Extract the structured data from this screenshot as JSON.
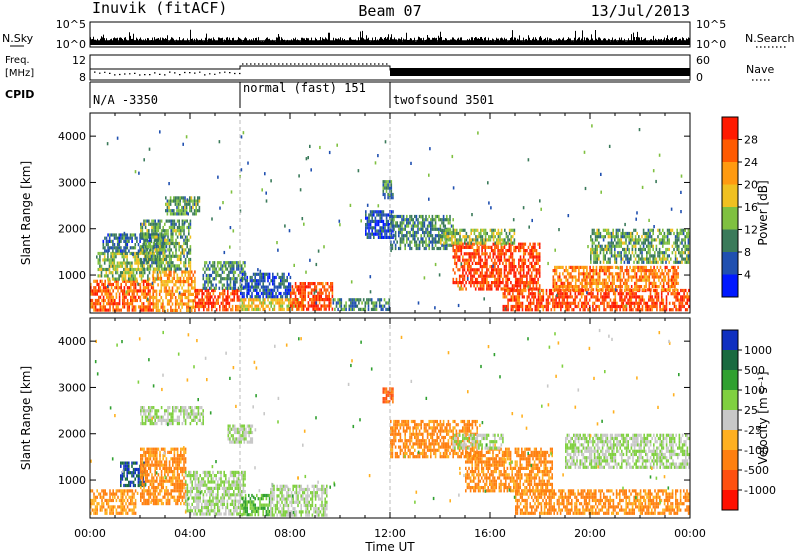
{
  "header": {
    "station": "Inuvik (fitACF)",
    "beam": "Beam 07",
    "date": "13/Jul/2013"
  },
  "summary_panels": {
    "nsky_label": "N.Sky",
    "nsearch_label": "N.Search",
    "count_ticks": [
      "10^5",
      "10^0"
    ],
    "freq_label_line1": "Freq.",
    "freq_label_line2": "[MHz]",
    "freq_ticks": [
      "12",
      "8"
    ],
    "nave_label": "Nave",
    "nave_ticks": [
      "60",
      "0"
    ],
    "cpid_label": "CPID",
    "cpid_segments": [
      {
        "label": "N/A -3350",
        "start_h": 0,
        "end_h": 6
      },
      {
        "label": "normal (fast) 151",
        "start_h": 6,
        "end_h": 12
      },
      {
        "label": "twofsound 3501",
        "start_h": 12,
        "end_h": 24
      }
    ]
  },
  "chart_data": [
    {
      "type": "heatmap",
      "title": "Power",
      "xlabel": "Time UT",
      "ylabel": "Slant Range [km]",
      "xlim": [
        0,
        24
      ],
      "ylim": [
        180,
        4500
      ],
      "x_ticks": [
        "00:00",
        "04:00",
        "08:00",
        "12:00",
        "16:00",
        "20:00",
        "00:00"
      ],
      "y_ticks": [
        1000,
        2000,
        3000,
        4000
      ],
      "colorbar": {
        "label": "Power [dB]",
        "ticks": [
          4,
          8,
          12,
          16,
          20,
          24,
          28
        ],
        "colors": [
          "#0018ff",
          "#2050b0",
          "#3a7a5a",
          "#7fc040",
          "#f0c020",
          "#ff9a10",
          "#ff5a00",
          "#ff1a00"
        ]
      },
      "regions": [
        {
          "t0": 0.0,
          "t1": 2.5,
          "r0": 250,
          "r1": 900,
          "level": 26
        },
        {
          "t0": 0.3,
          "t1": 2.8,
          "r0": 900,
          "r1": 1500,
          "level": 14
        },
        {
          "t0": 0.5,
          "t1": 3.0,
          "r0": 1500,
          "r1": 1900,
          "level": 8
        },
        {
          "t0": 2.5,
          "t1": 4.2,
          "r0": 250,
          "r1": 1100,
          "level": 22
        },
        {
          "t0": 2.0,
          "t1": 4.0,
          "r0": 1100,
          "r1": 2200,
          "level": 12
        },
        {
          "t0": 3.0,
          "t1": 4.4,
          "r0": 2300,
          "r1": 2700,
          "level": 12
        },
        {
          "t0": 4.2,
          "t1": 6.0,
          "r0": 250,
          "r1": 700,
          "level": 28
        },
        {
          "t0": 4.5,
          "t1": 6.2,
          "r0": 700,
          "r1": 1300,
          "level": 10
        },
        {
          "t0": 6.0,
          "t1": 8.5,
          "r0": 250,
          "r1": 500,
          "level": 18
        },
        {
          "t0": 6.0,
          "t1": 8.0,
          "r0": 500,
          "r1": 1050,
          "level": 6
        },
        {
          "t0": 8.0,
          "t1": 9.7,
          "r0": 280,
          "r1": 850,
          "level": 28
        },
        {
          "t0": 9.7,
          "t1": 12.0,
          "r0": 250,
          "r1": 500,
          "level": 10
        },
        {
          "t0": 11.0,
          "t1": 12.1,
          "r0": 1800,
          "r1": 2400,
          "level": 6
        },
        {
          "t0": 11.7,
          "t1": 12.1,
          "r0": 2700,
          "r1": 3050,
          "level": 10
        },
        {
          "t0": 12.0,
          "t1": 14.5,
          "r0": 1600,
          "r1": 2300,
          "level": 10
        },
        {
          "t0": 14.5,
          "t1": 18.0,
          "r0": 700,
          "r1": 1700,
          "level": 28
        },
        {
          "t0": 14.0,
          "t1": 17.0,
          "r0": 1700,
          "r1": 2000,
          "level": 14
        },
        {
          "t0": 16.5,
          "t1": 24.0,
          "r0": 250,
          "r1": 700,
          "level": 28
        },
        {
          "t0": 18.5,
          "t1": 23.5,
          "r0": 700,
          "r1": 1200,
          "level": 24
        },
        {
          "t0": 20.0,
          "t1": 24.0,
          "r0": 1300,
          "r1": 2000,
          "level": 12
        }
      ]
    },
    {
      "type": "heatmap",
      "title": "Velocity",
      "xlabel": "Time UT",
      "ylabel": "Slant Range [km]",
      "xlim": [
        0,
        24
      ],
      "ylim": [
        180,
        4500
      ],
      "x_ticks": [
        "00:00",
        "04:00",
        "08:00",
        "12:00",
        "16:00",
        "20:00",
        "00:00"
      ],
      "y_ticks": [
        1000,
        2000,
        3000,
        4000
      ],
      "colorbar": {
        "label": "Velocity [m s⁻¹]",
        "ticks": [
          1000,
          500,
          100,
          25,
          -25,
          -100,
          -500,
          -1000
        ],
        "colors": [
          "#1030c0",
          "#1a6a40",
          "#30a030",
          "#80d040",
          "#c8c8c8",
          "#ffb020",
          "#ff8010",
          "#ff5010",
          "#ff1000"
        ]
      },
      "regions": [
        {
          "t0": 0.0,
          "t1": 1.8,
          "r0": 250,
          "r1": 800,
          "level": -300
        },
        {
          "t0": 1.2,
          "t1": 2.2,
          "r0": 900,
          "r1": 1400,
          "level": 800
        },
        {
          "t0": 2.0,
          "t1": 3.8,
          "r0": 500,
          "r1": 1700,
          "level": -400
        },
        {
          "t0": 2.0,
          "t1": 4.5,
          "r0": 2200,
          "r1": 2600,
          "level": 0
        },
        {
          "t0": 3.8,
          "t1": 6.2,
          "r0": 250,
          "r1": 1200,
          "level": 0
        },
        {
          "t0": 6.0,
          "t1": 7.2,
          "r0": 250,
          "r1": 700,
          "level": 60
        },
        {
          "t0": 7.2,
          "t1": 9.5,
          "r0": 250,
          "r1": 900,
          "level": 0
        },
        {
          "t0": 5.5,
          "t1": 6.5,
          "r0": 1800,
          "r1": 2200,
          "level": 0
        },
        {
          "t0": 11.7,
          "t1": 12.1,
          "r0": 2700,
          "r1": 3000,
          "level": -800
        },
        {
          "t0": 12.0,
          "t1": 15.5,
          "r0": 1500,
          "r1": 2300,
          "level": -400
        },
        {
          "t0": 15.0,
          "t1": 18.5,
          "r0": 800,
          "r1": 1700,
          "level": -400
        },
        {
          "t0": 17.0,
          "t1": 24.0,
          "r0": 250,
          "r1": 800,
          "level": -400
        },
        {
          "t0": 19.0,
          "t1": 24.0,
          "r0": 1300,
          "r1": 2000,
          "level": 0
        },
        {
          "t0": 14.5,
          "t1": 16.5,
          "r0": 1700,
          "r1": 2000,
          "level": 0
        }
      ]
    }
  ]
}
